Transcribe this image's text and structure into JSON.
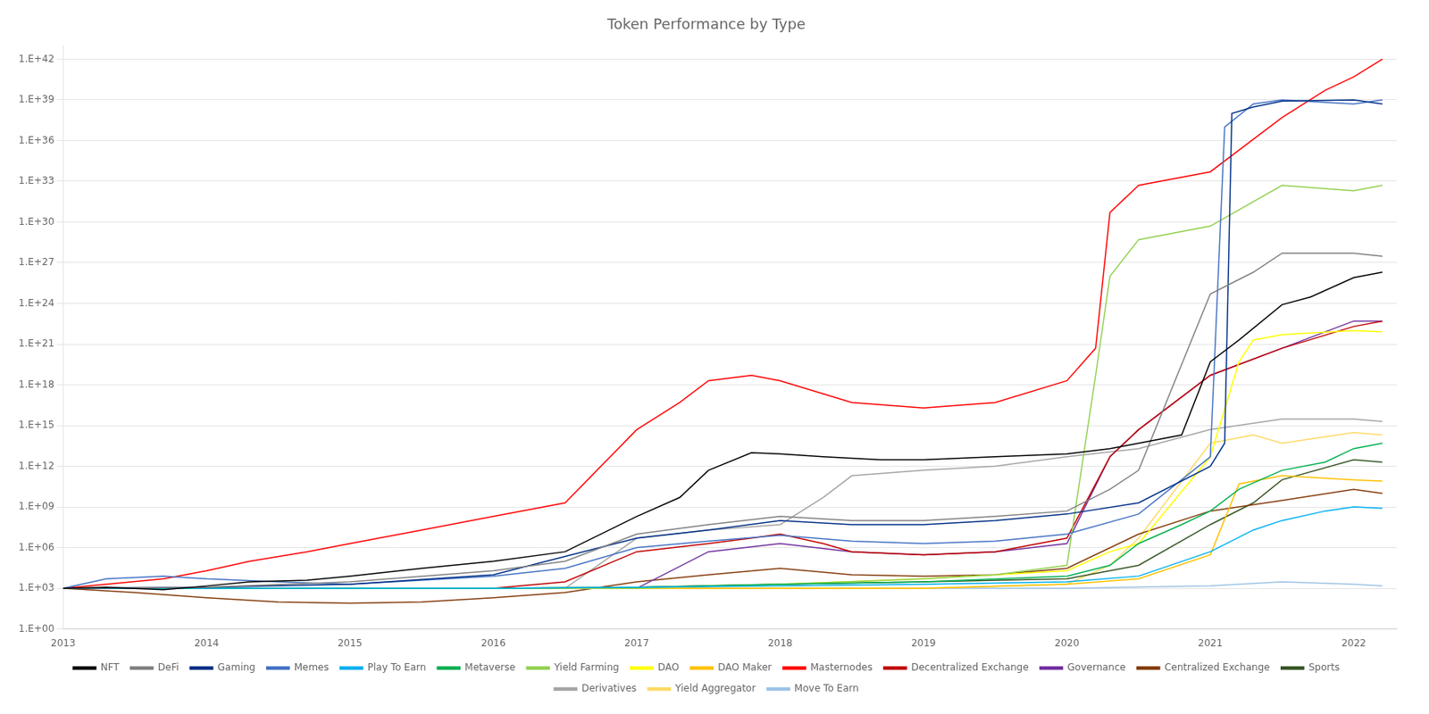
{
  "chart_data": {
    "type": "line",
    "title": "Token Performance by Type",
    "log": "y",
    "grid": "y",
    "legend": "bottom",
    "xlim": [
      2013.0,
      2022.3
    ],
    "xticks": [
      2013,
      2014,
      2015,
      2016,
      2017,
      2018,
      2019,
      2020,
      2021,
      2022
    ],
    "ylim": [
      1,
      1e+43
    ],
    "yticks": [
      {
        "value": 1,
        "label": "1.E+00"
      },
      {
        "value": 1000.0,
        "label": "1.E+03"
      },
      {
        "value": 1000000.0,
        "label": "1.E+06"
      },
      {
        "value": 1000000000.0,
        "label": "1.E+09"
      },
      {
        "value": 1000000000000.0,
        "label": "1.E+12"
      },
      {
        "value": 1000000000000000.0,
        "label": "1.E+15"
      },
      {
        "value": 1e+18,
        "label": "1.E+18"
      },
      {
        "value": 1e+21,
        "label": "1.E+21"
      },
      {
        "value": 1e+24,
        "label": "1.E+24"
      },
      {
        "value": 1e+27,
        "label": "1.E+27"
      },
      {
        "value": 1e+30,
        "label": "1.E+30"
      },
      {
        "value": 1e+33,
        "label": "1.E+33"
      },
      {
        "value": 1e+36,
        "label": "1.E+36"
      },
      {
        "value": 1e+39,
        "label": "1.E+39"
      },
      {
        "value": 1e+42,
        "label": "1.E+42"
      }
    ],
    "series": [
      {
        "name": "NFT",
        "color": "#000000",
        "x": [
          2013.0,
          2013.3,
          2013.7,
          2014.0,
          2014.3,
          2014.7,
          2015.0,
          2015.5,
          2016.0,
          2016.5,
          2017.0,
          2017.3,
          2017.5,
          2017.8,
          2018.0,
          2018.3,
          2018.7,
          2019.0,
          2019.5,
          2020.0,
          2020.3,
          2020.5,
          2020.8,
          2021.0,
          2021.2,
          2021.5,
          2021.7,
          2022.0,
          2022.2
        ],
        "values": [
          1000,
          1200,
          800,
          1500,
          3000,
          4000,
          8000,
          30000,
          100000,
          500000,
          200000000.0,
          5000000000.0,
          500000000000.0,
          10000000000000.0,
          8000000000000.0,
          5000000000000.0,
          3000000000000.0,
          3000000000000.0,
          5000000000000.0,
          8000000000000.0,
          20000000000000.0,
          50000000000000.0,
          200000000000000.0,
          5e+19,
          2e+21,
          8e+23,
          3e+24,
          8e+25,
          2e+26
        ]
      },
      {
        "name": "DeFi",
        "color": "#808080",
        "x": [
          2013.0,
          2014.0,
          2015.0,
          2016.0,
          2016.5,
          2017.0,
          2017.5,
          2018.0,
          2018.5,
          2019.0,
          2019.5,
          2020.0,
          2020.3,
          2020.5,
          2021.0,
          2021.3,
          2021.5,
          2022.0,
          2022.2
        ],
        "values": [
          1000,
          1200,
          3000,
          20000,
          100000,
          10000000.0,
          50000000.0,
          200000000.0,
          100000000.0,
          100000000.0,
          200000000.0,
          500000000.0,
          20000000000.0,
          500000000000.0,
          5e+24,
          2e+26,
          5e+27,
          5e+27,
          3e+27
        ]
      },
      {
        "name": "Gaming",
        "color": "#003087",
        "x": [
          2013.0,
          2014.0,
          2015.0,
          2016.0,
          2017.0,
          2017.5,
          2018.0,
          2018.5,
          2019.0,
          2019.5,
          2020.0,
          2020.5,
          2021.0,
          2021.1,
          2021.15,
          2021.3,
          2021.5,
          2022.0,
          2022.2
        ],
        "values": [
          1000,
          1200,
          2000,
          10000,
          5000000.0,
          20000000.0,
          100000000.0,
          50000000.0,
          50000000.0,
          100000000.0,
          300000000.0,
          2000000000.0,
          1000000000000.0,
          50000000000000.0,
          1e+38,
          3e+38,
          8e+38,
          1e+39,
          5e+38
        ]
      },
      {
        "name": "Memes",
        "color": "#4472C4",
        "x": [
          2013.0,
          2013.3,
          2013.7,
          2014.0,
          2014.5,
          2015.0,
          2015.5,
          2016.0,
          2016.5,
          2017.0,
          2017.5,
          2018.0,
          2018.5,
          2019.0,
          2019.5,
          2020.0,
          2020.5,
          2021.0,
          2021.1,
          2021.3,
          2021.5,
          2022.0,
          2022.2
        ],
        "values": [
          1000,
          5000,
          8000,
          5000,
          3000,
          2000,
          4000,
          8000,
          30000,
          1000000.0,
          3000000.0,
          8000000.0,
          3000000.0,
          2000000.0,
          3000000.0,
          10000000.0,
          300000000.0,
          5000000000000.0,
          1e+37,
          5e+38,
          1e+39,
          5e+38,
          1e+39
        ]
      },
      {
        "name": "Play To Earn",
        "color": "#00B0F0",
        "x": [
          2013.0,
          2016.0,
          2017.0,
          2018.0,
          2019.0,
          2020.0,
          2020.5,
          2021.0,
          2021.3,
          2021.5,
          2021.8,
          2022.0,
          2022.2
        ],
        "values": [
          1000,
          1000,
          1200,
          1500,
          2000,
          3000,
          8000,
          500000.0,
          20000000.0,
          100000000.0,
          500000000.0,
          1000000000.0,
          800000000.0
        ]
      },
      {
        "name": "Metaverse",
        "color": "#00B050",
        "x": [
          2013.0,
          2016.0,
          2017.0,
          2018.0,
          2019.0,
          2020.0,
          2020.3,
          2020.5,
          2020.8,
          2021.0,
          2021.2,
          2021.5,
          2021.8,
          2022.0,
          2022.2
        ],
        "values": [
          1000,
          1000,
          1200,
          2000,
          3000,
          8000,
          50000.0,
          2000000.0,
          50000000.0,
          500000000.0,
          20000000000.0,
          500000000000.0,
          2000000000000.0,
          20000000000000.0,
          50000000000000.0
        ]
      },
      {
        "name": "Yield Farming",
        "color": "#92D050",
        "x": [
          2013.0,
          2017.0,
          2018.0,
          2019.0,
          2019.5,
          2020.0,
          2020.2,
          2020.3,
          2020.5,
          2021.0,
          2021.5,
          2022.0,
          2022.2
        ],
        "values": [
          1000,
          1000,
          2000,
          5000,
          10000.0,
          50000.0,
          5e+18,
          1e+26,
          5e+28,
          5e+29,
          5e+32,
          2e+32,
          5e+32
        ]
      },
      {
        "name": "DAO",
        "color": "#FFFF00",
        "x": [
          2013.0,
          2017.0,
          2018.0,
          2019.0,
          2020.0,
          2020.3,
          2020.5,
          2021.0,
          2021.2,
          2021.3,
          2021.5,
          2022.0,
          2022.2
        ],
        "values": [
          1000,
          1000,
          2000,
          5000,
          20000.0,
          500000.0,
          2000000.0,
          5000000000000.0,
          5e+19,
          2e+21,
          5e+21,
          1e+22,
          8e+21
        ]
      },
      {
        "name": "DAO Maker",
        "color": "#FFC000",
        "x": [
          2013.0,
          2018.0,
          2019.0,
          2020.0,
          2020.5,
          2021.0,
          2021.2,
          2021.5,
          2022.0,
          2022.2
        ],
        "values": [
          1000,
          1000,
          1000,
          2000,
          5000,
          300000.0,
          50000000000.0,
          200000000000.0,
          100000000000.0,
          80000000000.0
        ]
      },
      {
        "name": "Masternodes",
        "color": "#FF0000",
        "x": [
          2013.0,
          2013.3,
          2013.7,
          2014.0,
          2014.3,
          2014.7,
          2015.0,
          2015.5,
          2016.0,
          2016.5,
          2017.0,
          2017.3,
          2017.5,
          2017.8,
          2018.0,
          2018.5,
          2019.0,
          2019.5,
          2020.0,
          2020.2,
          2020.3,
          2020.5,
          2021.0,
          2021.5,
          2021.8,
          2022.0,
          2022.2
        ],
        "values": [
          1000,
          2000,
          5000,
          20000.0,
          100000.0,
          500000.0,
          2000000.0,
          20000000.0,
          200000000.0,
          2000000000.0,
          500000000000000.0,
          5e+16,
          2e+18,
          5e+18,
          2e+18,
          5e+16,
          2e+16,
          5e+16,
          2e+18,
          5e+20,
          5e+30,
          5e+32,
          5e+33,
          5e+37,
          5e+39,
          5e+40,
          1e+42
        ]
      },
      {
        "name": "Decentralized Exchange",
        "color": "#C00000",
        "x": [
          2013.0,
          2016.0,
          2016.5,
          2017.0,
          2017.5,
          2017.8,
          2018.0,
          2018.3,
          2018.5,
          2019.0,
          2019.5,
          2020.0,
          2020.3,
          2020.5,
          2021.0,
          2021.5,
          2022.0,
          2022.2
        ],
        "values": [
          1000,
          1000,
          3000,
          500000.0,
          2000000.0,
          5000000.0,
          10000000.0,
          2000000.0,
          500000.0,
          300000.0,
          500000.0,
          5000000.0,
          5000000000000.0,
          500000000000000.0,
          5e+18,
          5e+20,
          2e+22,
          5e+22
        ]
      },
      {
        "name": "Governance",
        "color": "#7030A0",
        "x": [
          2013.0,
          2017.0,
          2017.5,
          2018.0,
          2018.5,
          2019.0,
          2019.5,
          2020.0,
          2020.3,
          2020.5,
          2021.0,
          2021.5,
          2022.0,
          2022.2
        ],
        "values": [
          1000,
          1000,
          500000.0,
          2000000.0,
          500000.0,
          300000.0,
          500000.0,
          2000000.0,
          5000000000000.0,
          500000000000000.0,
          5e+18,
          5e+20,
          5e+22,
          5e+22
        ]
      },
      {
        "name": "Centralized Exchange",
        "color": "#843C0C",
        "x": [
          2013.0,
          2013.5,
          2014.0,
          2014.5,
          2015.0,
          2015.5,
          2016.0,
          2016.5,
          2017.0,
          2017.5,
          2018.0,
          2018.5,
          2019.0,
          2019.5,
          2020.0,
          2020.5,
          2021.0,
          2021.5,
          2022.0,
          2022.2
        ],
        "values": [
          1000,
          500,
          200,
          100,
          80,
          100,
          200,
          500,
          3000,
          10000.0,
          30000.0,
          10000.0,
          8000,
          10000.0,
          30000.0,
          10000000.0,
          500000000.0,
          3000000000.0,
          20000000000.0,
          10000000000.0
        ]
      },
      {
        "name": "Sports",
        "color": "#375623",
        "x": [
          2013.0,
          2016.0,
          2017.0,
          2018.0,
          2019.0,
          2020.0,
          2020.5,
          2021.0,
          2021.3,
          2021.5,
          2022.0,
          2022.2
        ],
        "values": [
          1000,
          1000,
          1200,
          2000,
          3000,
          5000,
          50000.0,
          50000000.0,
          2000000000.0,
          100000000000.0,
          3000000000000.0,
          2000000000000.0
        ]
      },
      {
        "name": "Derivatives",
        "color": "#A5A5A5",
        "x": [
          2013.0,
          2016.5,
          2017.0,
          2017.5,
          2018.0,
          2018.3,
          2018.5,
          2019.0,
          2019.5,
          2020.0,
          2020.5,
          2021.0,
          2021.5,
          2022.0,
          2022.2
        ],
        "values": [
          1000,
          1000,
          5000000.0,
          20000000.0,
          50000000.0,
          5000000000.0,
          200000000000.0,
          500000000000.0,
          1000000000000.0,
          5000000000000.0,
          20000000000000.0,
          500000000000000.0,
          3000000000000000.0,
          3000000000000000.0,
          2000000000000000.0
        ]
      },
      {
        "name": "Yield Aggregator",
        "color": "#FFD966",
        "x": [
          2013.0,
          2019.0,
          2020.0,
          2020.3,
          2020.5,
          2021.0,
          2021.3,
          2021.5,
          2022.0,
          2022.2
        ],
        "values": [
          1000,
          1000,
          2000,
          50000.0,
          5000000.0,
          50000000000000.0,
          200000000000000.0,
          50000000000000.0,
          300000000000000.0,
          200000000000000.0
        ]
      },
      {
        "name": "Move To Earn",
        "color": "#9DC3E6",
        "x": [
          2013.0,
          2020.0,
          2021.0,
          2021.5,
          2022.0,
          2022.2
        ],
        "values": [
          1000,
          1000,
          1500,
          3000,
          2000,
          1500
        ]
      }
    ]
  }
}
